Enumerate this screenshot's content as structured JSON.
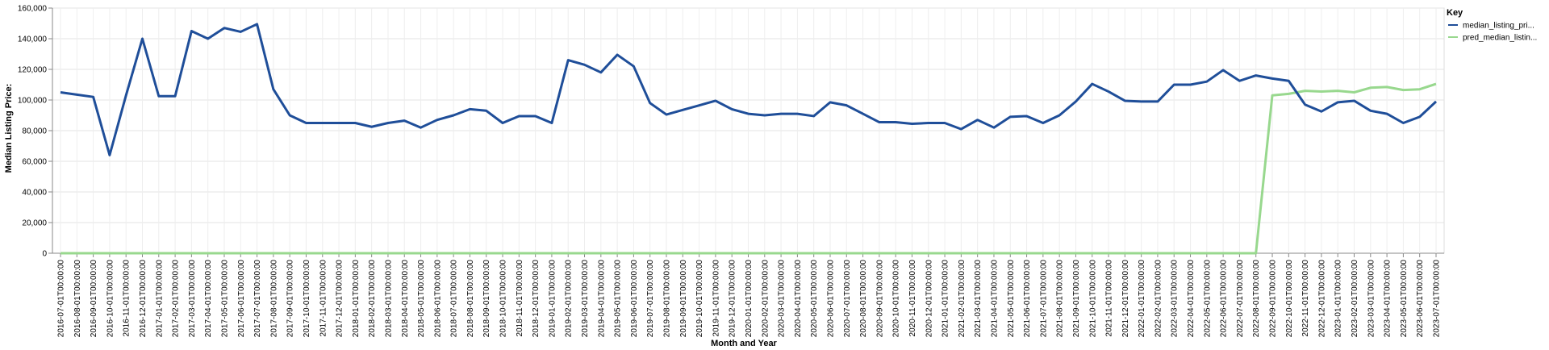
{
  "chart_data": {
    "type": "line",
    "xlabel": "Month and Year",
    "ylabel": "Median Listing Price:",
    "ylim": [
      0,
      160000
    ],
    "yticks": [
      "0",
      "20,000",
      "40,000",
      "60,000",
      "80,000",
      "100,000",
      "120,000",
      "140,000",
      "160,000"
    ],
    "grid": true,
    "legend": {
      "title": "Key",
      "position": "top-right"
    },
    "x": [
      "2016-07-01T00:00:00",
      "2016-08-01T00:00:00",
      "2016-09-01T00:00:00",
      "2016-10-01T00:00:00",
      "2016-11-01T00:00:00",
      "2016-12-01T00:00:00",
      "2017-01-01T00:00:00",
      "2017-02-01T00:00:00",
      "2017-03-01T00:00:00",
      "2017-04-01T00:00:00",
      "2017-05-01T00:00:00",
      "2017-06-01T00:00:00",
      "2017-07-01T00:00:00",
      "2017-08-01T00:00:00",
      "2017-09-01T00:00:00",
      "2017-10-01T00:00:00",
      "2017-11-01T00:00:00",
      "2017-12-01T00:00:00",
      "2018-01-01T00:00:00",
      "2018-02-01T00:00:00",
      "2018-03-01T00:00:00",
      "2018-04-01T00:00:00",
      "2018-05-01T00:00:00",
      "2018-06-01T00:00:00",
      "2018-07-01T00:00:00",
      "2018-08-01T00:00:00",
      "2018-09-01T00:00:00",
      "2018-10-01T00:00:00",
      "2018-11-01T00:00:00",
      "2018-12-01T00:00:00",
      "2019-01-01T00:00:00",
      "2019-02-01T00:00:00",
      "2019-03-01T00:00:00",
      "2019-04-01T00:00:00",
      "2019-05-01T00:00:00",
      "2019-06-01T00:00:00",
      "2019-07-01T00:00:00",
      "2019-08-01T00:00:00",
      "2019-09-01T00:00:00",
      "2019-10-01T00:00:00",
      "2019-11-01T00:00:00",
      "2019-12-01T00:00:00",
      "2020-01-01T00:00:00",
      "2020-02-01T00:00:00",
      "2020-03-01T00:00:00",
      "2020-04-01T00:00:00",
      "2020-05-01T00:00:00",
      "2020-06-01T00:00:00",
      "2020-07-01T00:00:00",
      "2020-08-01T00:00:00",
      "2020-09-01T00:00:00",
      "2020-10-01T00:00:00",
      "2020-11-01T00:00:00",
      "2020-12-01T00:00:00",
      "2021-01-01T00:00:00",
      "2021-02-01T00:00:00",
      "2021-03-01T00:00:00",
      "2021-04-01T00:00:00",
      "2021-05-01T00:00:00",
      "2021-06-01T00:00:00",
      "2021-07-01T00:00:00",
      "2021-08-01T00:00:00",
      "2021-09-01T00:00:00",
      "2021-10-01T00:00:00",
      "2021-11-01T00:00:00",
      "2021-12-01T00:00:00",
      "2022-01-01T00:00:00",
      "2022-02-01T00:00:00",
      "2022-03-01T00:00:00",
      "2022-04-01T00:00:00",
      "2022-05-01T00:00:00",
      "2022-06-01T00:00:00",
      "2022-07-01T00:00:00",
      "2022-08-01T00:00:00",
      "2022-09-01T00:00:00",
      "2022-10-01T00:00:00",
      "2022-11-01T00:00:00",
      "2022-12-01T00:00:00",
      "2023-01-01T00:00:00",
      "2023-02-01T00:00:00",
      "2023-03-01T00:00:00",
      "2023-04-01T00:00:00",
      "2023-05-01T00:00:00",
      "2023-06-01T00:00:00",
      "2023-07-01T00:00:00"
    ],
    "series": [
      {
        "name": "median_listing_pri...",
        "color": "#1f4e99",
        "values": [
          105000,
          103500,
          102000,
          64000,
          103000,
          140000,
          102500,
          102500,
          145000,
          140000,
          147000,
          144500,
          149500,
          107000,
          90000,
          85000,
          85000,
          85000,
          85000,
          82500,
          85000,
          86500,
          82000,
          87000,
          90000,
          94000,
          93000,
          85000,
          89500,
          89500,
          85000,
          126000,
          123000,
          118000,
          129500,
          122000,
          98000,
          90500,
          93500,
          96500,
          99500,
          94000,
          91000,
          90000,
          91000,
          91000,
          89500,
          98500,
          96500,
          91000,
          85500,
          85500,
          84500,
          85000,
          85000,
          81000,
          87000,
          82000,
          89000,
          89500,
          85000,
          90000,
          99000,
          110500,
          105500,
          99500,
          99000,
          99000,
          110000,
          110000,
          112000,
          119500,
          112500,
          116000,
          114000,
          112500,
          97000,
          92500,
          98500,
          99500,
          93000,
          91000,
          85000,
          89000,
          99000
        ]
      },
      {
        "name": "pred_median_listin...",
        "color": "#98d88e",
        "values": [
          0,
          0,
          0,
          0,
          0,
          0,
          0,
          0,
          0,
          0,
          0,
          0,
          0,
          0,
          0,
          0,
          0,
          0,
          0,
          0,
          0,
          0,
          0,
          0,
          0,
          0,
          0,
          0,
          0,
          0,
          0,
          0,
          0,
          0,
          0,
          0,
          0,
          0,
          0,
          0,
          0,
          0,
          0,
          0,
          0,
          0,
          0,
          0,
          0,
          0,
          0,
          0,
          0,
          0,
          0,
          0,
          0,
          0,
          0,
          0,
          0,
          0,
          0,
          0,
          0,
          0,
          0,
          0,
          0,
          0,
          0,
          0,
          0,
          0,
          103000,
          104000,
          106000,
          105500,
          106000,
          105000,
          108000,
          108500,
          106500,
          107000,
          110500
        ]
      }
    ]
  }
}
